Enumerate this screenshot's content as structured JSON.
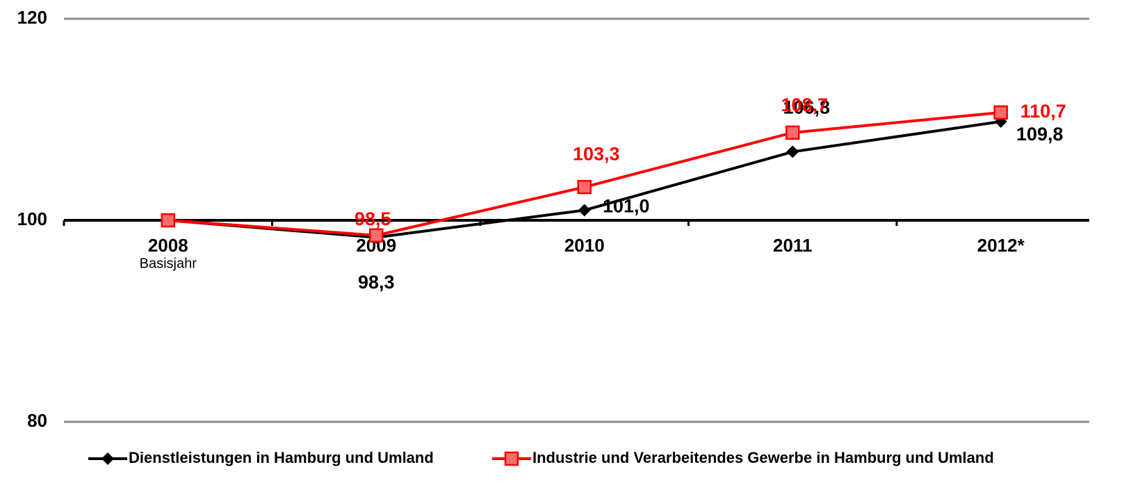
{
  "chart_data": {
    "type": "line",
    "categories": [
      "2008",
      "2009",
      "2010",
      "2011",
      "2012*"
    ],
    "annotations": [
      "Basisjahr"
    ],
    "series": [
      {
        "name": "Dienstleistungen in Hamburg und Umland",
        "color": "#000000",
        "marker": "diamond",
        "values": [
          100,
          98.3,
          101.0,
          106.8,
          109.8
        ],
        "value_labels": [
          null,
          "98,3",
          "101,0",
          "106,8",
          "109,8"
        ]
      },
      {
        "name": "Industrie und Verarbeitendes Gewerbe in Hamburg und Umland",
        "color": "#ff0000",
        "marker": "square",
        "values": [
          100,
          98.5,
          103.3,
          108.7,
          110.7
        ],
        "value_labels": [
          null,
          "98,5",
          "103,3",
          "108,7",
          "110,7"
        ]
      }
    ],
    "ylim": [
      80,
      120
    ],
    "yticks": [
      80,
      100,
      120
    ],
    "x_axis_at": 100,
    "grid": true,
    "legend": "bottom"
  }
}
